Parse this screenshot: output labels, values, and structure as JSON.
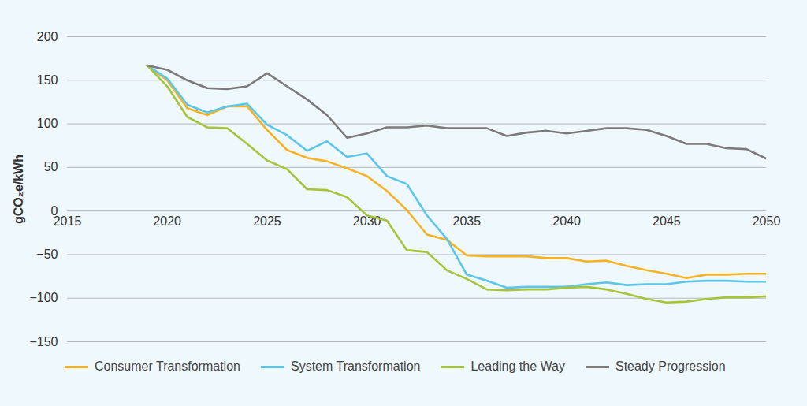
{
  "chart_data": {
    "type": "line",
    "y_label": "gCO₂e/kWh",
    "x": [
      2019,
      2020,
      2021,
      2022,
      2023,
      2024,
      2025,
      2026,
      2027,
      2028,
      2029,
      2030,
      2031,
      2032,
      2033,
      2034,
      2035,
      2036,
      2037,
      2038,
      2039,
      2040,
      2041,
      2042,
      2043,
      2044,
      2045,
      2046,
      2047,
      2048,
      2049,
      2050
    ],
    "series": [
      {
        "name": "Consumer Transformation",
        "color": "#f5b324",
        "values": [
          167,
          150,
          118,
          110,
          120,
          120,
          93,
          70,
          61,
          57,
          49,
          40,
          23,
          1,
          -27,
          -33,
          -51,
          -52,
          -52,
          -52,
          -54,
          -54,
          -58,
          -57,
          -63,
          -68,
          -72,
          -77,
          -73,
          -73,
          -72,
          -72
        ]
      },
      {
        "name": "System Transformation",
        "color": "#5bc5ea",
        "values": [
          167,
          152,
          122,
          113,
          120,
          123,
          99,
          87,
          69,
          80,
          62,
          66,
          40,
          31,
          -5,
          -32,
          -73,
          -80,
          -88,
          -87,
          -87,
          -87,
          -84,
          -82,
          -85,
          -84,
          -84,
          -81,
          -80,
          -80,
          -81,
          -81
        ]
      },
      {
        "name": "Leading the Way",
        "color": "#a7c439",
        "values": [
          167,
          143,
          108,
          96,
          95,
          77,
          58,
          48,
          25,
          24,
          16,
          -5,
          -11,
          -45,
          -47,
          -68,
          -78,
          -90,
          -91,
          -90,
          -90,
          -88,
          -87,
          -90,
          -95,
          -101,
          -105,
          -104,
          -101,
          -99,
          -99,
          -98
        ]
      },
      {
        "name": "Steady Progression",
        "color": "#7d7a7b",
        "values": [
          167,
          162,
          150,
          141,
          140,
          143,
          158,
          143,
          128,
          110,
          84,
          89,
          96,
          96,
          98,
          95,
          95,
          95,
          86,
          90,
          92,
          89,
          92,
          95,
          95,
          93,
          86,
          77,
          77,
          72,
          71,
          60
        ]
      }
    ],
    "xlim": [
      2015,
      2050
    ],
    "xticks": [
      2015,
      2020,
      2025,
      2030,
      2035,
      2040,
      2045,
      2050
    ],
    "ylim": [
      -150,
      200
    ],
    "yticks": [
      -150,
      -100,
      -50,
      0,
      50,
      100,
      150,
      200
    ],
    "grid": true,
    "legend": "bottom"
  }
}
